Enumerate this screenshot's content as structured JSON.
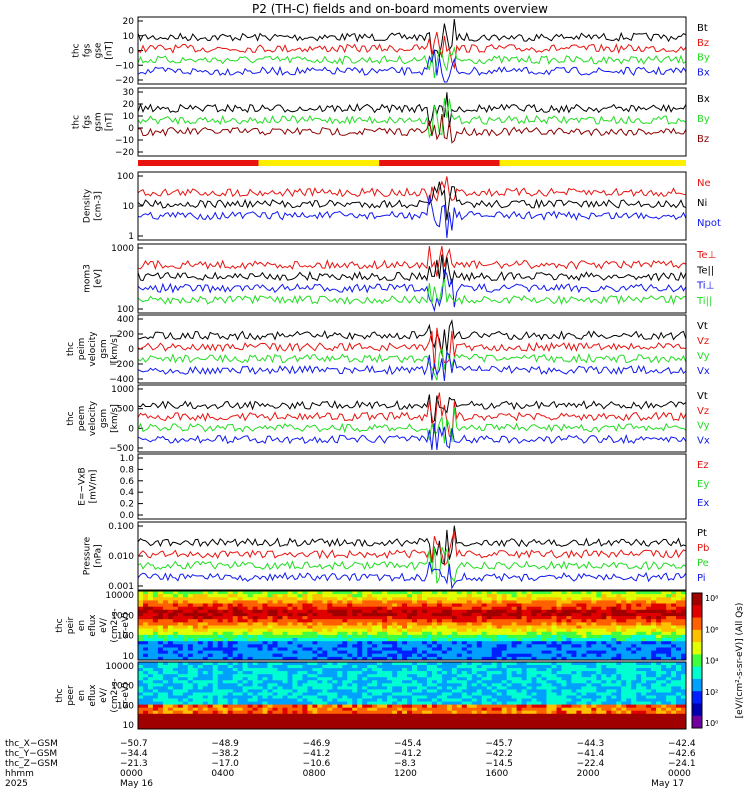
{
  "title": "P2 (TH-C) fields and on-board moments overview",
  "colors": {
    "black": "#000000",
    "red": "#e8130f",
    "green": "#22dd22",
    "blue": "#1018ee",
    "yellow": "#ffee00",
    "darkred": "#8b0000"
  },
  "chart_data": [
    {
      "type": "line",
      "ylabel": [
        "thc",
        "fgs",
        "gse",
        "[nT]"
      ],
      "ylim": [
        -20,
        25
      ],
      "ticks": [
        "20",
        "10",
        "0",
        "−10",
        "−20"
      ],
      "series": [
        {
          "name": "Bt",
          "color": "#000000",
          "level": 12,
          "noise": 4
        },
        {
          "name": "Bz",
          "color": "#e8130f",
          "level": -6,
          "noise": 5
        },
        {
          "name": "By",
          "color": "#22dd22",
          "level": 4,
          "noise": 4
        },
        {
          "name": "Bx",
          "color": "#1018ee",
          "level": -10,
          "noise": 4
        }
      ]
    },
    {
      "type": "line",
      "ylabel": [
        "thc",
        "fgs",
        "gsm",
        "[nT]"
      ],
      "ylim": [
        -25,
        30
      ],
      "ticks": [
        "30",
        "20",
        "10",
        "0",
        "−10",
        "−20"
      ],
      "series": [
        {
          "name": "Bx",
          "color": "#000000",
          "level": 3,
          "noise": 7
        },
        {
          "name": "By",
          "color": "#22dd22",
          "level": 0,
          "noise": 4
        },
        {
          "name": "Bz",
          "color": "#8b0000",
          "level": -2,
          "noise": 6
        }
      ]
    },
    {
      "type": "line",
      "ylabel": [
        "Density",
        "[cm-3]"
      ],
      "log": true,
      "ylim": [
        0.4,
        150
      ],
      "ticks": [
        "100",
        "10",
        "1"
      ],
      "series": [
        {
          "name": "Ne",
          "color": "#e8130f",
          "level": 25,
          "noise": 0.15
        },
        {
          "name": "Ni",
          "color": "#000000",
          "level": 22,
          "noise": 0.15
        },
        {
          "name": "Npot",
          "color": "#1018ee",
          "level": 20,
          "noise": 0.15
        }
      ]
    },
    {
      "type": "line",
      "ylabel": [
        "mom3",
        "[eV]"
      ],
      "log": true,
      "ylim": [
        30,
        3000
      ],
      "ticks": [
        "1000",
        "100"
      ],
      "series": [
        {
          "name": "Te⊥",
          "color": "#e8130f",
          "level": 45,
          "noise": 0.1
        },
        {
          "name": "Te||",
          "color": "#000000",
          "level": 55,
          "noise": 0.1
        },
        {
          "name": "Ti⊥",
          "color": "#1018ee",
          "level": 250,
          "noise": 0.2
        },
        {
          "name": "Ti||",
          "color": "#22dd22",
          "level": 180,
          "noise": 0.2
        }
      ]
    },
    {
      "type": "line",
      "ylabel": [
        "thc",
        "peim",
        "velocity",
        "gsm",
        "[km/s]"
      ],
      "ylim": [
        -450,
        450
      ],
      "ticks": [
        "400",
        "200",
        "0",
        "−200",
        "−400"
      ],
      "series": [
        {
          "name": "Vt",
          "color": "#000000",
          "level": 380,
          "noise": 15
        },
        {
          "name": "Vz",
          "color": "#e8130f",
          "level": -20,
          "noise": 20
        },
        {
          "name": "Vy",
          "color": "#22dd22",
          "level": -60,
          "noise": 20
        },
        {
          "name": "Vx",
          "color": "#1018ee",
          "level": -380,
          "noise": 15
        }
      ]
    },
    {
      "type": "line",
      "ylabel": [
        "thc",
        "peem",
        "velocity",
        "gsm",
        "[km/s]"
      ],
      "ylim": [
        -750,
        1100
      ],
      "ticks": [
        "1000",
        "500",
        "0",
        "−500"
      ],
      "series": [
        {
          "name": "Vt",
          "color": "#000000",
          "level": 450,
          "noise": 120
        },
        {
          "name": "Vz",
          "color": "#e8130f",
          "level": -30,
          "noise": 60
        },
        {
          "name": "Vy",
          "color": "#22dd22",
          "level": -150,
          "noise": 80
        },
        {
          "name": "Vx",
          "color": "#1018ee",
          "level": -400,
          "noise": 100
        }
      ]
    },
    {
      "type": "line",
      "ylabel": [
        "E=−VxB",
        "[mV/m]"
      ],
      "ylim": [
        -0.05,
        1.05
      ],
      "ticks": [
        "1.0",
        "0.8",
        "0.6",
        "0.4",
        "0.2",
        "0.0"
      ],
      "series": [
        {
          "name": "Ez",
          "color": "#e8130f"
        },
        {
          "name": "Ey",
          "color": "#22dd22"
        },
        {
          "name": "Ex",
          "color": "#1018ee"
        }
      ]
    },
    {
      "type": "line",
      "ylabel": [
        "Pressure",
        "[nPa]"
      ],
      "log": true,
      "ylim": [
        0.0004,
        0.4
      ],
      "ticks": [
        "0.100",
        "0.010",
        "0.001"
      ],
      "series": [
        {
          "name": "Pt",
          "color": "#000000",
          "level": 0.1,
          "noise": 0.12
        },
        {
          "name": "Pb",
          "color": "#e8130f",
          "level": 0.05,
          "noise": 0.3
        },
        {
          "name": "Pe",
          "color": "#22dd22",
          "level": 0.07,
          "noise": 0.15
        },
        {
          "name": "Pi",
          "color": "#1018ee",
          "level": 0.09,
          "noise": 0.12
        }
      ]
    },
    {
      "type": "heatmap",
      "ylabel": [
        "thc",
        "peir",
        "en",
        "eflux",
        "eV/",
        "(cm2-s-",
        "sr-eV)"
      ],
      "ticks": [
        "10000",
        "1000",
        "100",
        "10"
      ],
      "band": "ion"
    },
    {
      "type": "heatmap",
      "ylabel": [
        "thc",
        "peer",
        "en",
        "eflux",
        "eV/",
        "(cm2-s-",
        "sr-eV)"
      ],
      "ticks": [
        "10000",
        "1000",
        "100",
        "10"
      ],
      "band": "electron"
    }
  ],
  "colorbar": {
    "ticks": [
      "10⁸",
      "10⁶",
      "10⁴",
      "10²",
      "10⁰"
    ],
    "label": "[eV/(cm²-s-sr-eV)] (All Qs)"
  },
  "footer": {
    "rows": [
      {
        "label": "thc_X−GSM",
        "values": [
          "−50.7",
          "−48.9",
          "−46.9",
          "−45.4",
          "−45.7",
          "−44.3",
          "−42.4"
        ]
      },
      {
        "label": "thc_Y−GSM",
        "values": [
          "−34.4",
          "−38.2",
          "−41.2",
          "−41.2",
          "−42.2",
          "−41.4",
          "−42.6"
        ]
      },
      {
        "label": "thc_Z−GSM",
        "values": [
          "−21.3",
          "−17.0",
          "−10.6",
          "−8.3",
          "−14.5",
          "−22.4",
          "−24.1"
        ]
      },
      {
        "label": "hhmm",
        "values": [
          "0000",
          "0400",
          "0800",
          "1200",
          "1600",
          "2000",
          "0000"
        ]
      }
    ],
    "year": "2025",
    "date_start": "May 16",
    "date_end": "May 17"
  }
}
